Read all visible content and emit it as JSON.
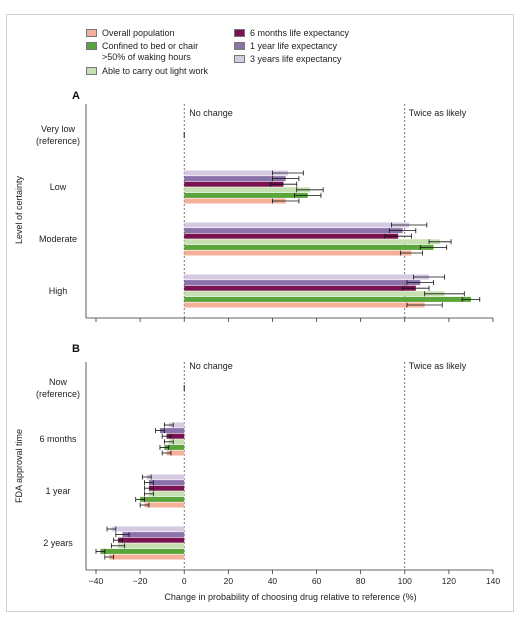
{
  "colors": {
    "overall": "#f4b09a",
    "bed": "#5aa63a",
    "light": "#c7e0b1",
    "m6": "#7a1150",
    "y1": "#8a72ab",
    "y3": "#d5c9e3"
  },
  "chart_data": [
    {
      "panel_label": "A",
      "type": "bar",
      "orientation": "horizontal",
      "ylabel": "Level of certainty",
      "categories": [
        "Very low\n(reference)",
        "Low",
        "Moderate",
        "High"
      ],
      "annotations": [
        "No change",
        "Twice as likely"
      ],
      "series": [
        {
          "name": "3 years life expectancy",
          "key": "y3",
          "values": [
            0,
            47,
            102,
            111
          ],
          "err": [
            0,
            7,
            8,
            7
          ]
        },
        {
          "name": "1 year life expectancy",
          "key": "y1",
          "values": [
            0,
            46,
            99,
            107
          ],
          "err": [
            0,
            6,
            6,
            6
          ]
        },
        {
          "name": "6 months life expectancy",
          "key": "m6",
          "values": [
            0,
            45,
            97,
            105
          ],
          "err": [
            0,
            6,
            6,
            6
          ]
        },
        {
          "name": "Able to carry out light work",
          "key": "light",
          "values": [
            0,
            57,
            116,
            118
          ],
          "err": [
            0,
            6,
            5,
            9
          ]
        },
        {
          "name": "Confined to bed or chair\n>50% of waking hours",
          "key": "bed",
          "values": [
            0,
            56,
            113,
            130
          ],
          "err": [
            0,
            6,
            6,
            4
          ]
        },
        {
          "name": "Overall population",
          "key": "overall",
          "values": [
            0,
            46,
            103,
            109
          ],
          "err": [
            0,
            6,
            5,
            8
          ]
        }
      ],
      "xlim": [
        -40,
        140
      ]
    },
    {
      "panel_label": "B",
      "type": "bar",
      "orientation": "horizontal",
      "ylabel": "FDA approval time",
      "xlabel": "Change in probability of choosing drug relative to reference (%)",
      "categories": [
        "Now\n(reference)",
        "6 months",
        "1 year",
        "2 years"
      ],
      "annotations": [
        "No change",
        "Twice as likely"
      ],
      "series": [
        {
          "name": "3 years life expectancy",
          "key": "y3",
          "values": [
            0,
            -7,
            -17,
            -33
          ],
          "err": [
            0,
            2,
            2,
            2
          ]
        },
        {
          "name": "1 year life expectancy",
          "key": "y1",
          "values": [
            0,
            -11,
            -16,
            -28
          ],
          "err": [
            0,
            2,
            2,
            3
          ]
        },
        {
          "name": "6 months life expectancy",
          "key": "m6",
          "values": [
            0,
            -8,
            -16,
            -30
          ],
          "err": [
            0,
            2,
            2,
            2
          ]
        },
        {
          "name": "Able to carry out light work",
          "key": "light",
          "values": [
            0,
            -7,
            -16,
            -30
          ],
          "err": [
            0,
            2,
            2,
            3
          ]
        },
        {
          "name": "Confined to bed or chair\n>50% of waking hours",
          "key": "bed",
          "values": [
            0,
            -9,
            -20,
            -38
          ],
          "err": [
            0,
            2,
            2,
            2
          ]
        },
        {
          "name": "Overall population",
          "key": "overall",
          "values": [
            0,
            -8,
            -18,
            -34
          ],
          "err": [
            0,
            2,
            2,
            2
          ]
        }
      ],
      "xlim": [
        -40,
        140
      ],
      "xticks": [
        "−40",
        "−20",
        "0",
        "20",
        "40",
        "60",
        "80",
        "100",
        "120",
        "140"
      ]
    }
  ],
  "legend": [
    {
      "label": "Overall population",
      "sub": "",
      "key": "overall"
    },
    {
      "label": "Confined to bed or chair",
      "sub": ">50% of waking hours",
      "key": "bed"
    },
    {
      "label": "Able to carry out light work",
      "sub": "",
      "key": "light"
    },
    {
      "label": "6 months life expectancy",
      "sub": "",
      "key": "m6"
    },
    {
      "label": "1 year life expectancy",
      "sub": "",
      "key": "y1"
    },
    {
      "label": "3 years life expectancy",
      "sub": "",
      "key": "y3"
    }
  ]
}
